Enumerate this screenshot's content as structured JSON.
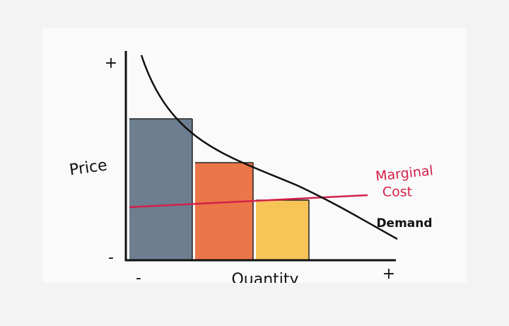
{
  "axes": {
    "y_label": "Price",
    "x_label": "Quantity",
    "y_top": "+",
    "y_bottom": "-",
    "x_left": "-",
    "x_right": "+"
  },
  "curves": {
    "marginal_cost": [
      "Marginal",
      "Cost"
    ],
    "demand": "Demand"
  }
}
